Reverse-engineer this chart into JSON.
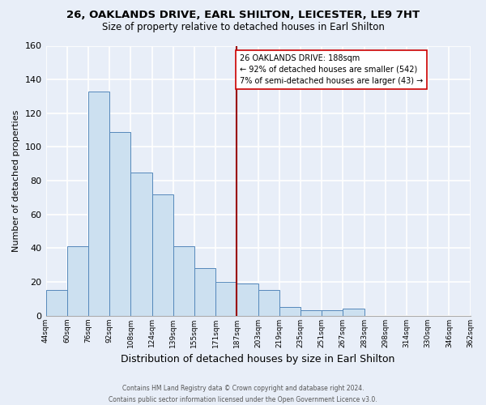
{
  "title": "26, OAKLANDS DRIVE, EARL SHILTON, LEICESTER, LE9 7HT",
  "subtitle": "Size of property relative to detached houses in Earl Shilton",
  "xlabel": "Distribution of detached houses by size in Earl Shilton",
  "ylabel": "Number of detached properties",
  "bin_labels": [
    "44sqm",
    "60sqm",
    "76sqm",
    "92sqm",
    "108sqm",
    "124sqm",
    "139sqm",
    "155sqm",
    "171sqm",
    "187sqm",
    "203sqm",
    "219sqm",
    "235sqm",
    "251sqm",
    "267sqm",
    "283sqm",
    "298sqm",
    "314sqm",
    "330sqm",
    "346sqm",
    "362sqm"
  ],
  "bar_heights": [
    15,
    41,
    133,
    109,
    85,
    72,
    41,
    28,
    20,
    19,
    15,
    5,
    3,
    3,
    4,
    0,
    0,
    0,
    0,
    0
  ],
  "bar_color": "#cce0f0",
  "bar_edge_color": "#5588bb",
  "vline_color": "#990000",
  "annotation_text": "26 OAKLANDS DRIVE: 188sqm\n← 92% of detached houses are smaller (542)\n7% of semi-detached houses are larger (43) →",
  "annotation_box_color": "#ffffff",
  "annotation_box_edge": "#cc0000",
  "ylim": [
    0,
    160
  ],
  "yticks": [
    0,
    20,
    40,
    60,
    80,
    100,
    120,
    140,
    160
  ],
  "footer1": "Contains HM Land Registry data © Crown copyright and database right 2024.",
  "footer2": "Contains public sector information licensed under the Open Government Licence v3.0.",
  "background_color": "#e8eef8",
  "grid_color": "#ffffff"
}
